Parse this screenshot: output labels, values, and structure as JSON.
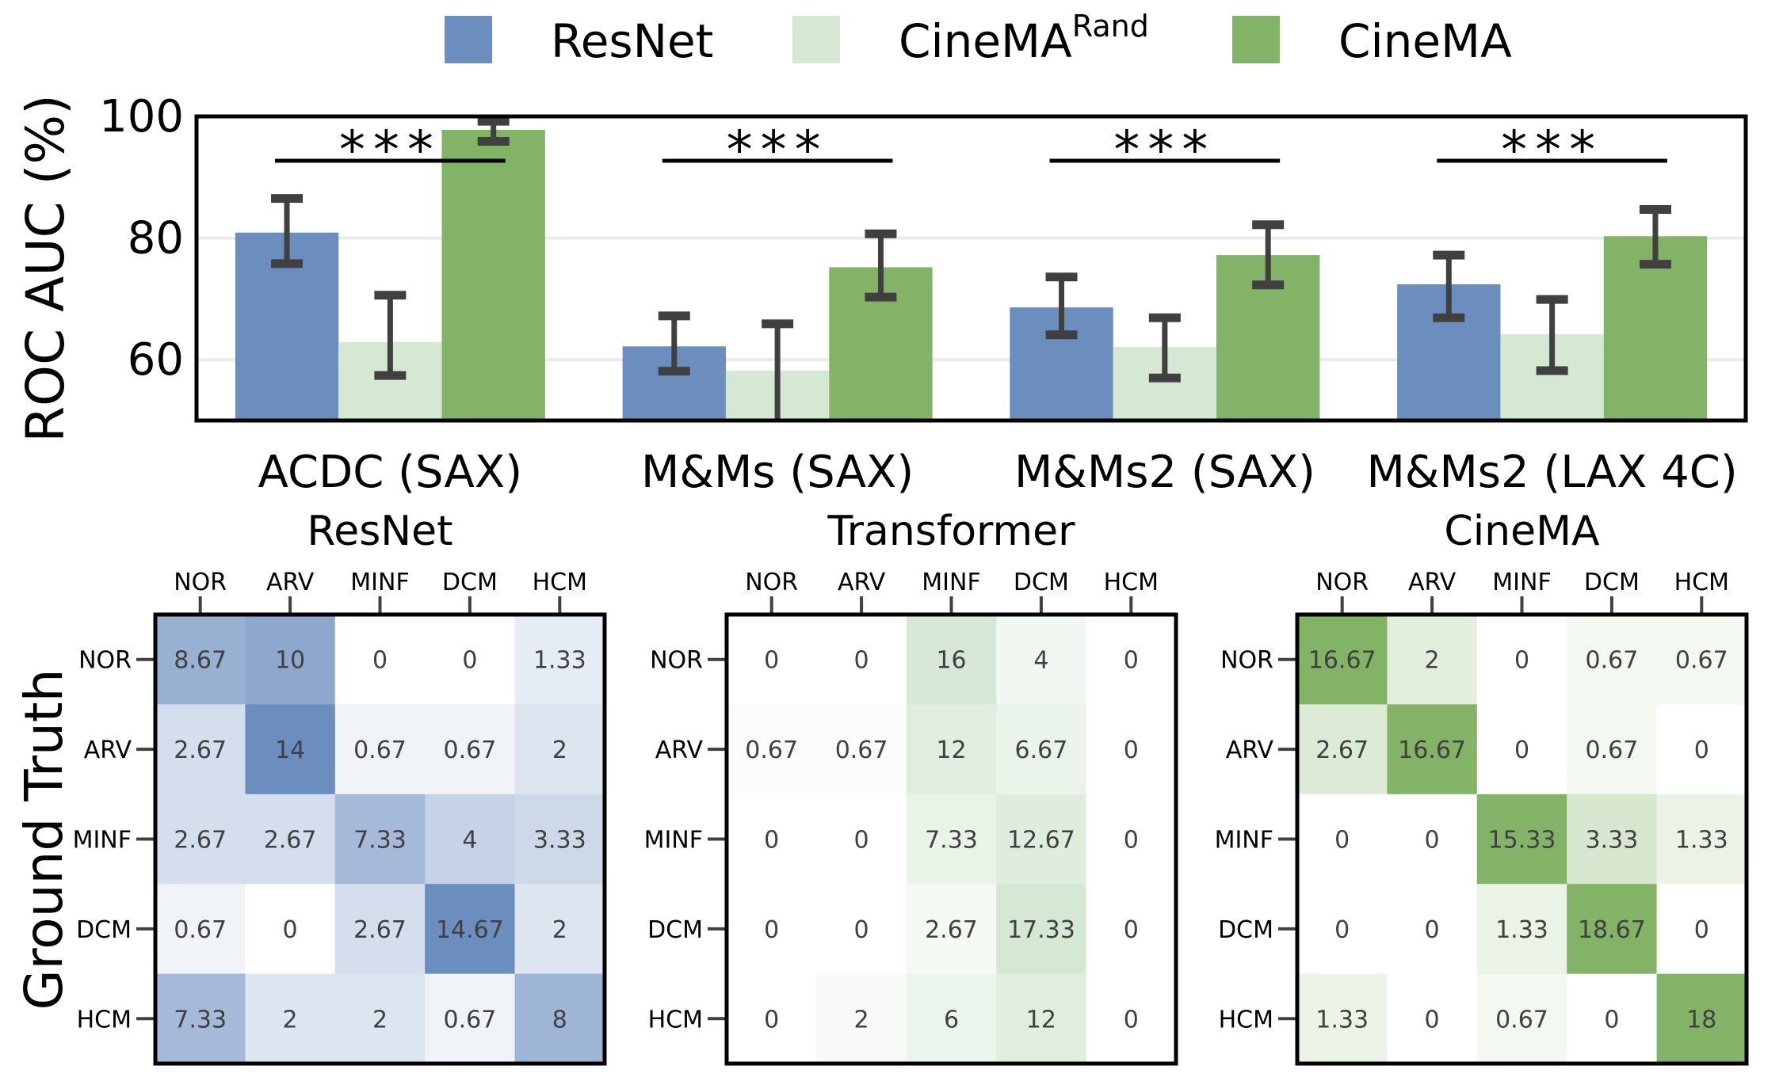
{
  "colors": {
    "ResNet": "#6c8ebf",
    "CineMA_Rand": "#d5e8d4",
    "CineMA": "#82b366",
    "error_bar": "#404040",
    "grid": "#ebebeb",
    "cell_text": "#404040"
  },
  "chart_data": [
    {
      "type": "bar",
      "ylabel": "ROC AUC (%)",
      "ylim": [
        50,
        100
      ],
      "yticks": [
        60,
        80,
        100
      ],
      "grid": true,
      "legend_placement": "top-center",
      "legend": [
        {
          "key": "ResNet",
          "label": "ResNet",
          "sup": ""
        },
        {
          "key": "CineMA_Rand",
          "label": "CineMA",
          "sup": "Rand"
        },
        {
          "key": "CineMA",
          "label": "CineMA",
          "sup": ""
        }
      ],
      "categories": [
        "ACDC (SAX)",
        "M&Ms (SAX)",
        "M&Ms2 (SAX)",
        "M&Ms2 (LAX 4C)"
      ],
      "series": [
        {
          "name": "ResNet",
          "key": "ResNet",
          "values": [
            80.9,
            62.2,
            68.6,
            72.4
          ],
          "err_low": [
            75.8,
            58.1,
            64.1,
            66.9
          ],
          "err_high": [
            86.5,
            67.2,
            73.6,
            77.2
          ]
        },
        {
          "name": "CineMA^Rand",
          "key": "CineMA_Rand",
          "values": [
            62.9,
            58.2,
            62.1,
            64.2
          ],
          "err_low": [
            57.4,
            50.0,
            57.0,
            58.2
          ],
          "err_high": [
            70.6,
            65.9,
            66.9,
            69.9
          ]
        },
        {
          "name": "CineMA",
          "key": "CineMA",
          "values": [
            97.8,
            75.2,
            77.2,
            80.3
          ],
          "err_low": [
            95.9,
            70.3,
            72.3,
            75.7
          ],
          "err_high": [
            99.2,
            80.7,
            82.2,
            84.7
          ]
        }
      ],
      "annotations": [
        "***",
        "***",
        "***",
        "***"
      ]
    },
    {
      "type": "heatmap",
      "ylabel": "Ground Truth",
      "classes": [
        "NOR",
        "ARV",
        "MINF",
        "DCM",
        "HCM"
      ],
      "matrices": [
        {
          "title": "ResNet",
          "color": "#6c8ebf",
          "vmax": 14,
          "values": [
            [
              8.67,
              10,
              0,
              0,
              1.33
            ],
            [
              2.67,
              14,
              0.67,
              0.67,
              2
            ],
            [
              2.67,
              2.67,
              7.33,
              4,
              3.33
            ],
            [
              0.67,
              0,
              2.67,
              14.67,
              2
            ],
            [
              7.33,
              2,
              2,
              0.67,
              8
            ]
          ],
          "labels": [
            [
              "8.67",
              "10",
              "0",
              "0",
              "1.33"
            ],
            [
              "2.67",
              "14",
              "0.67",
              "0.67",
              "2"
            ],
            [
              "2.67",
              "2.67",
              "7.33",
              "4",
              "3.33"
            ],
            [
              "0.67",
              "0",
              "2.67",
              "14.67",
              "2"
            ],
            [
              "7.33",
              "2",
              "2",
              "0.67",
              "8"
            ]
          ]
        },
        {
          "title": "Transformer",
          "color": "#d5e8d4",
          "vmax": 17.33,
          "values": [
            [
              0,
              0,
              16,
              4,
              0
            ],
            [
              0.67,
              0.67,
              12,
              6.67,
              0
            ],
            [
              0,
              0,
              7.33,
              12.67,
              0
            ],
            [
              0,
              0,
              2.67,
              17.33,
              0
            ],
            [
              0,
              2,
              6,
              12,
              0
            ]
          ],
          "labels": [
            [
              "0",
              "0",
              "16",
              "4",
              "0"
            ],
            [
              "0.67",
              "0.67",
              "12",
              "6.67",
              "0"
            ],
            [
              "0",
              "0",
              "7.33",
              "12.67",
              "0"
            ],
            [
              "0",
              "0",
              "2.67",
              "17.33",
              "0"
            ],
            [
              "0",
              "2",
              "6",
              "12",
              "0"
            ]
          ]
        },
        {
          "title": "CineMA",
          "color": "#82b366",
          "vmax": 15,
          "values": [
            [
              16.67,
              2,
              0,
              0.67,
              0.67
            ],
            [
              2.67,
              16.67,
              0,
              0.67,
              0
            ],
            [
              0,
              0,
              15.33,
              3.33,
              1.33
            ],
            [
              0,
              0,
              1.33,
              18.67,
              0
            ],
            [
              1.33,
              0,
              0.67,
              0,
              18
            ]
          ],
          "labels": [
            [
              "16.67",
              "2",
              "0",
              "0.67",
              "0.67"
            ],
            [
              "2.67",
              "16.67",
              "0",
              "0.67",
              "0"
            ],
            [
              "0",
              "0",
              "15.33",
              "3.33",
              "1.33"
            ],
            [
              "0",
              "0",
              "1.33",
              "18.67",
              "0"
            ],
            [
              "1.33",
              "0",
              "0.67",
              "0",
              "18"
            ]
          ]
        }
      ]
    }
  ]
}
